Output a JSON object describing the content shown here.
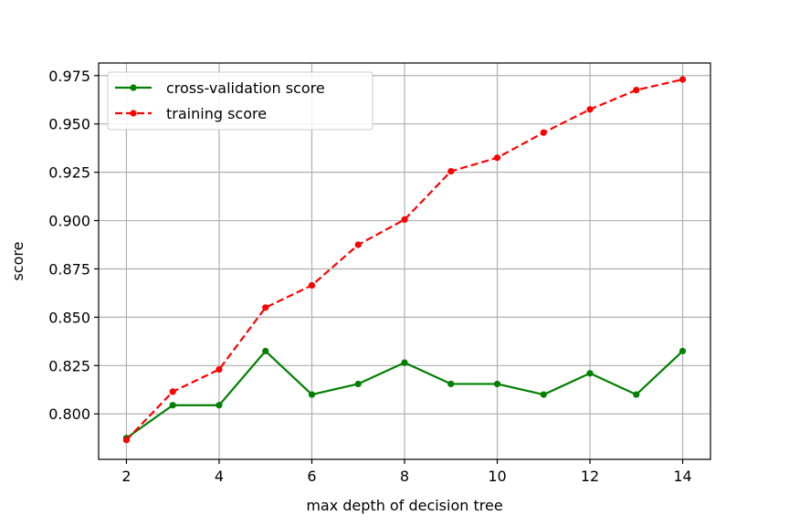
{
  "chart_data": {
    "type": "line",
    "title": "",
    "xlabel": "max depth of decision tree",
    "ylabel": "score",
    "x": [
      2,
      3,
      4,
      5,
      6,
      7,
      8,
      9,
      10,
      11,
      12,
      13,
      14
    ],
    "xlim": [
      1.4,
      14.6
    ],
    "ylim": [
      0.7765,
      0.9815
    ],
    "xticks": [
      2,
      4,
      6,
      8,
      10,
      12,
      14
    ],
    "yticks": [
      0.8,
      0.825,
      0.85,
      0.875,
      0.9,
      0.925,
      0.95,
      0.975
    ],
    "ytick_labels": [
      "0.800",
      "0.825",
      "0.850",
      "0.875",
      "0.900",
      "0.925",
      "0.950",
      "0.975"
    ],
    "grid": true,
    "legend_position": "top-left",
    "series": [
      {
        "name": "cross-validation score",
        "color": "#008000",
        "dash": "solid",
        "marker": "point",
        "values": [
          0.7875,
          0.8045,
          0.8045,
          0.8325,
          0.81,
          0.8155,
          0.8265,
          0.8155,
          0.8155,
          0.81,
          0.821,
          0.81,
          0.8325
        ]
      },
      {
        "name": "training score",
        "color": "#ff0000",
        "dash": "dashed",
        "marker": "point",
        "values": [
          0.7865,
          0.8115,
          0.823,
          0.855,
          0.8665,
          0.8875,
          0.9005,
          0.9255,
          0.9325,
          0.9455,
          0.9575,
          0.9675,
          0.973
        ]
      }
    ]
  }
}
